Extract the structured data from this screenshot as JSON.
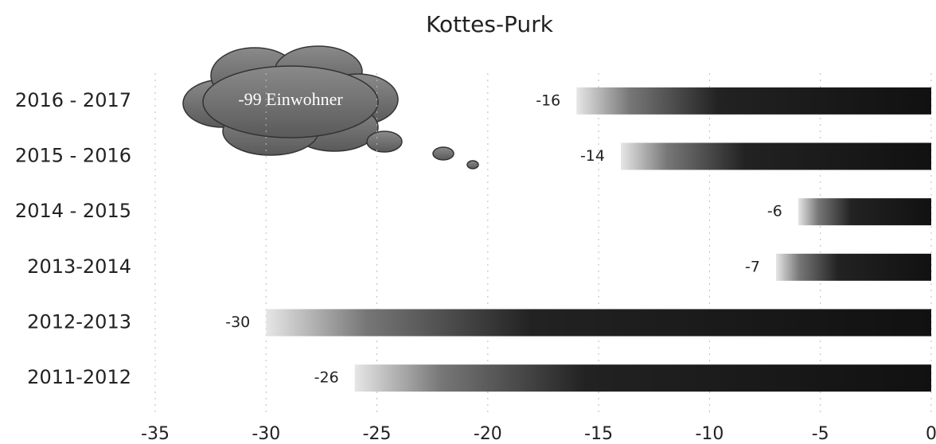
{
  "chart_data": {
    "type": "bar",
    "orientation": "horizontal",
    "title": "Kottes-Purk",
    "categories": [
      "2016 - 2017",
      "2015 - 2016",
      "2014 - 2015",
      "2013-2014",
      "2012-2013",
      "2011-2012"
    ],
    "values": [
      -16,
      -14,
      -6,
      -7,
      -30,
      -26
    ],
    "color": "#111111",
    "xlim": [
      -35,
      0
    ],
    "xticks": [
      -35,
      -30,
      -25,
      -20,
      -15,
      -10,
      -5,
      0
    ],
    "grid": true,
    "annotation": "-99 Einwohner"
  }
}
